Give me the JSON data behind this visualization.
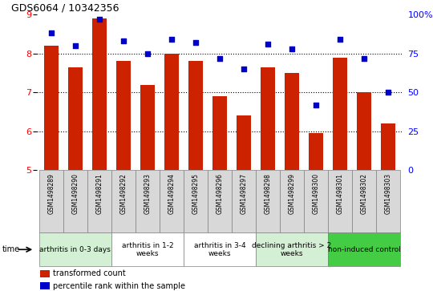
{
  "title": "GDS6064 / 10342356",
  "samples": [
    "GSM1498289",
    "GSM1498290",
    "GSM1498291",
    "GSM1498292",
    "GSM1498293",
    "GSM1498294",
    "GSM1498295",
    "GSM1498296",
    "GSM1498297",
    "GSM1498298",
    "GSM1498299",
    "GSM1498300",
    "GSM1498301",
    "GSM1498302",
    "GSM1498303"
  ],
  "bar_values": [
    8.2,
    7.65,
    8.9,
    7.8,
    7.2,
    8.0,
    7.8,
    6.9,
    6.4,
    7.65,
    7.5,
    5.95,
    7.9,
    7.0,
    6.2
  ],
  "dot_values": [
    88,
    80,
    97,
    83,
    75,
    84,
    82,
    72,
    65,
    81,
    78,
    42,
    84,
    72,
    50
  ],
  "bar_color": "#cc2200",
  "dot_color": "#0000cc",
  "ylim_left": [
    5,
    9
  ],
  "ylim_right": [
    0,
    100
  ],
  "yticks_left": [
    5,
    6,
    7,
    8,
    9
  ],
  "yticks_right": [
    0,
    25,
    50,
    75,
    100
  ],
  "groups": [
    {
      "label": "arthritis in 0-3 days",
      "start": 0,
      "end": 3,
      "color": "#d4f0d4"
    },
    {
      "label": "arthritis in 1-2\nweeks",
      "start": 3,
      "end": 6,
      "color": "#ffffff"
    },
    {
      "label": "arthritis in 3-4\nweeks",
      "start": 6,
      "end": 9,
      "color": "#ffffff"
    },
    {
      "label": "declining arthritis > 2\nweeks",
      "start": 9,
      "end": 12,
      "color": "#d4f0d4"
    },
    {
      "label": "non-induced control",
      "start": 12,
      "end": 15,
      "color": "#44cc44"
    }
  ],
  "sample_box_color": "#d8d8d8",
  "xlabel": "time",
  "legend_bar_label": "transformed count",
  "legend_dot_label": "percentile rank within the sample",
  "background_color": "#ffffff",
  "plot_bg_color": "#ffffff",
  "fig_width": 5.4,
  "fig_height": 3.63,
  "dpi": 100
}
